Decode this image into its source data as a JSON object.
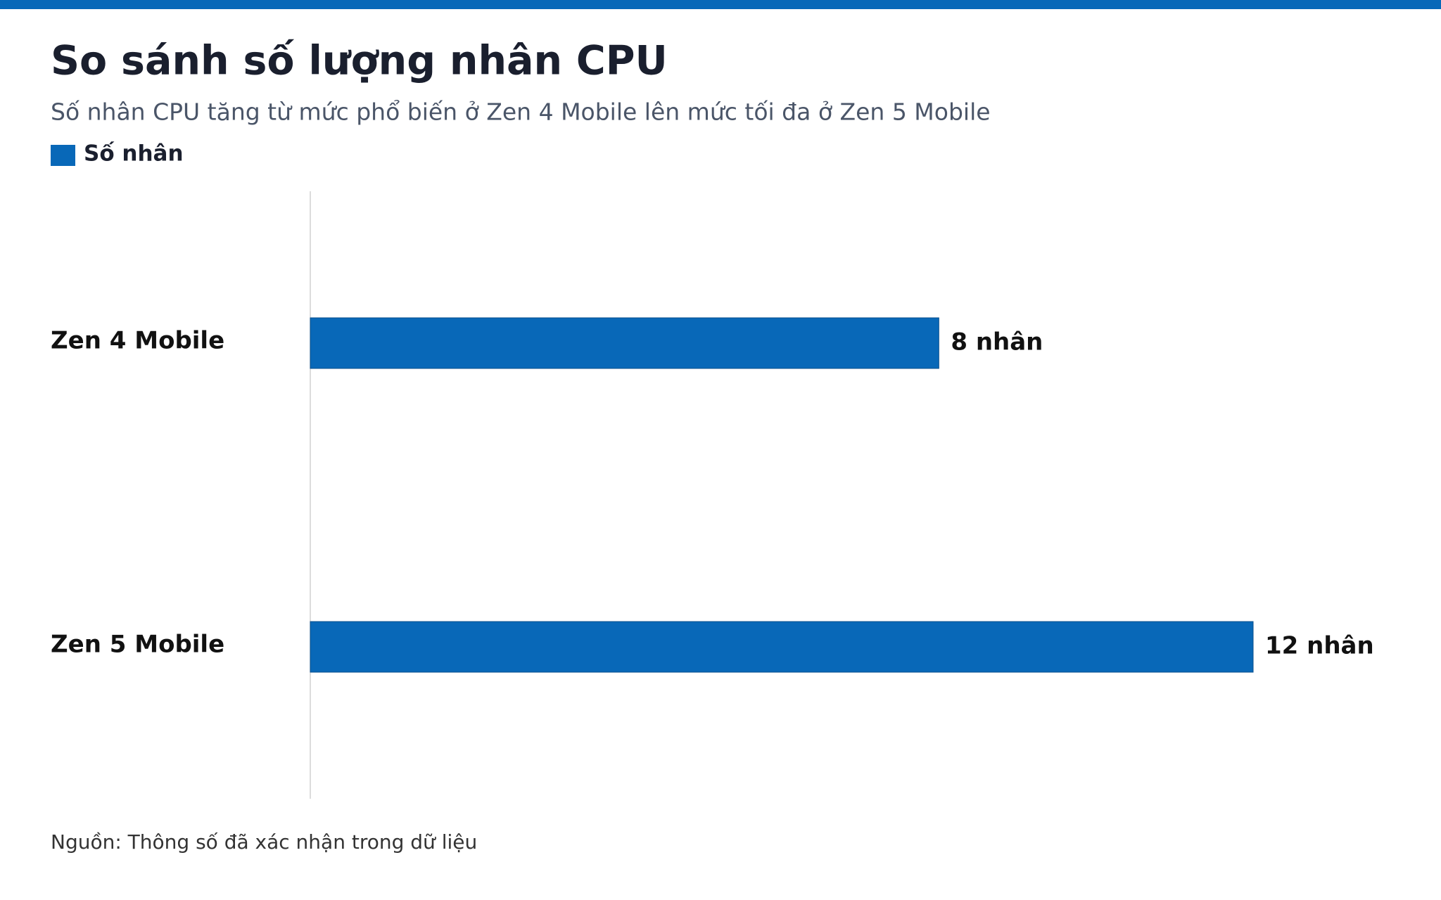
{
  "chart_data": {
    "type": "bar",
    "orientation": "horizontal",
    "title": "So sánh số lượng nhân CPU",
    "subtitle": "Số nhân CPU tăng từ mức phổ biến ở Zen 4 Mobile lên mức tối đa ở Zen 5 Mobile",
    "categories": [
      "Zen 4 Mobile",
      "Zen 5 Mobile"
    ],
    "series": [
      {
        "name": "Số nhân",
        "color": "#0868b8",
        "values": [
          8,
          12
        ],
        "value_labels": [
          "8 nhân",
          "12 nhân"
        ]
      }
    ],
    "source": "Nguồn: Thông số đã xác nhận trong dữ liệu"
  }
}
